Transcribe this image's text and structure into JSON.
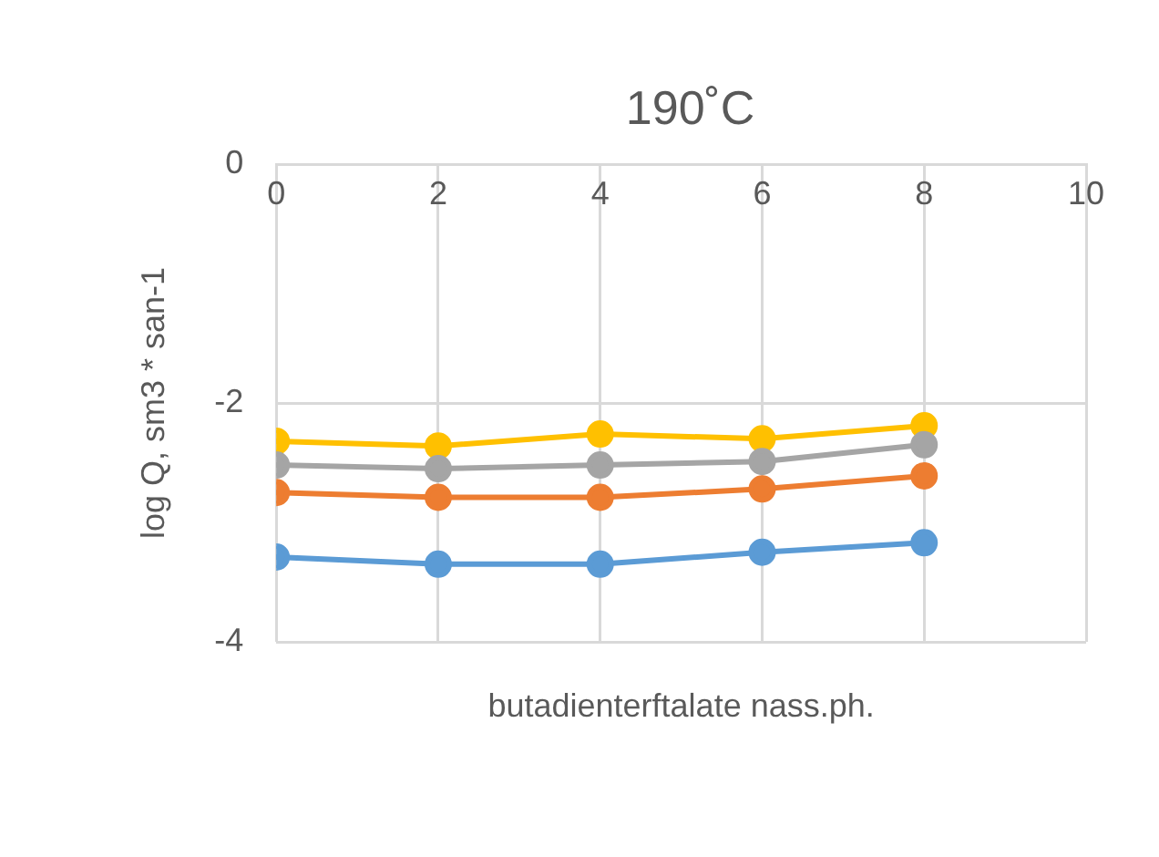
{
  "chart_data": {
    "type": "line",
    "title": "190˚C",
    "xlabel": "butadienterftalate nass.ph.",
    "ylabel": "log Q, sm3 * san-1",
    "x": [
      0,
      2,
      4,
      6,
      8
    ],
    "series": [
      {
        "color": "#5b9bd5",
        "values": [
          -3.29,
          -3.35,
          -3.35,
          -3.25,
          -3.17
        ]
      },
      {
        "color": "#ed7d31",
        "values": [
          -2.75,
          -2.79,
          -2.79,
          -2.72,
          -2.61
        ]
      },
      {
        "color": "#a5a5a5",
        "values": [
          -2.52,
          -2.55,
          -2.52,
          -2.49,
          -2.35
        ]
      },
      {
        "color": "#ffc000",
        "values": [
          -2.32,
          -2.36,
          -2.26,
          -2.3,
          -2.19
        ]
      }
    ],
    "xlim": [
      0,
      10
    ],
    "xticks": [
      0,
      2,
      4,
      6,
      8,
      10
    ],
    "ylim": [
      -4,
      0
    ],
    "yticks": [
      -4,
      -2,
      0
    ],
    "grid": true,
    "legend": false,
    "marker": "circle",
    "line_style": "solid"
  }
}
